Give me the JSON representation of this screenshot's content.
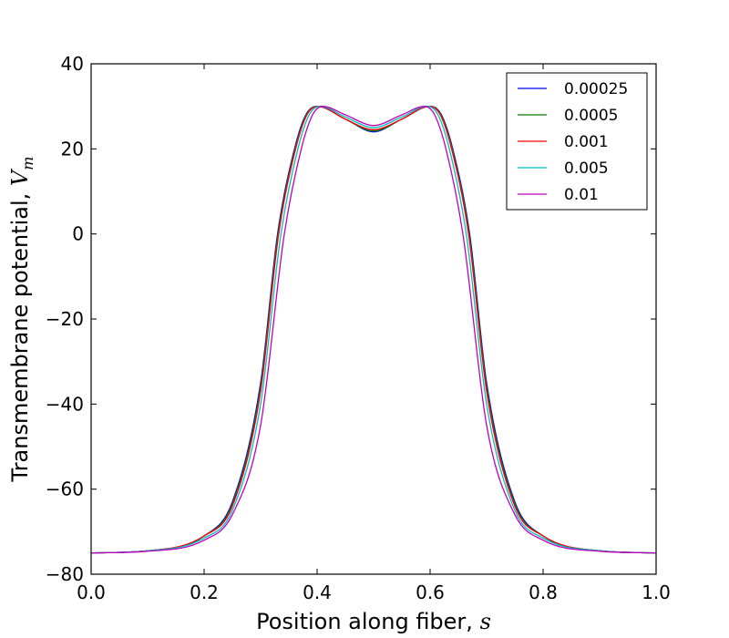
{
  "chart_data": {
    "type": "line",
    "xlabel": "Position along fiber, ",
    "xlabel_var": "s",
    "ylabel": "Transmembrane potential, ",
    "ylabel_var": "V",
    "ylabel_var_sub": "m",
    "xlim": [
      0.0,
      1.0
    ],
    "ylim": [
      -80,
      40
    ],
    "xticks": [
      "0.0",
      "0.2",
      "0.4",
      "0.6",
      "0.8",
      "1.0"
    ],
    "yticks": [
      "−80",
      "−60",
      "−40",
      "−20",
      "0",
      "20",
      "40"
    ],
    "grid": false,
    "legend_position": "top-right",
    "series": [
      {
        "name": "0.00025",
        "color": "#0000ff",
        "x": [
          0.0,
          0.1,
          0.2,
          0.25,
          0.3,
          0.33,
          0.36,
          0.38,
          0.4,
          0.45,
          0.5,
          0.55,
          0.6,
          0.62,
          0.64,
          0.67,
          0.7,
          0.75,
          0.8,
          0.9,
          1.0
        ],
        "y": [
          -75,
          -74.5,
          -71,
          -63,
          -35,
          0,
          20,
          28,
          30,
          27,
          24,
          27,
          30,
          28,
          20,
          0,
          -35,
          -63,
          -71,
          -74.5,
          -75
        ]
      },
      {
        "name": "0.0005",
        "color": "#008000",
        "x": [
          0.0,
          0.1,
          0.2,
          0.25,
          0.3,
          0.331,
          0.361,
          0.381,
          0.401,
          0.45,
          0.5,
          0.55,
          0.599,
          0.619,
          0.639,
          0.669,
          0.7,
          0.75,
          0.8,
          0.9,
          1.0
        ],
        "y": [
          -75,
          -74.5,
          -71,
          -63.5,
          -36,
          0,
          20,
          28,
          30,
          27,
          24.2,
          27,
          30,
          28,
          20,
          0,
          -36,
          -63.5,
          -71,
          -74.5,
          -75
        ]
      },
      {
        "name": "0.001",
        "color": "#ff0000",
        "x": [
          0.0,
          0.1,
          0.2,
          0.25,
          0.3,
          0.332,
          0.362,
          0.382,
          0.402,
          0.45,
          0.5,
          0.55,
          0.598,
          0.618,
          0.638,
          0.668,
          0.7,
          0.75,
          0.8,
          0.9,
          1.0
        ],
        "y": [
          -75,
          -74.5,
          -71,
          -64,
          -37,
          0,
          20,
          28,
          30,
          27,
          24.5,
          27,
          30,
          28,
          20,
          0,
          -37,
          -64,
          -71,
          -74.5,
          -75
        ]
      },
      {
        "name": "0.005",
        "color": "#00bfbf",
        "x": [
          0.0,
          0.1,
          0.2,
          0.25,
          0.3,
          0.336,
          0.366,
          0.386,
          0.405,
          0.45,
          0.5,
          0.55,
          0.595,
          0.614,
          0.634,
          0.664,
          0.7,
          0.75,
          0.8,
          0.9,
          1.0
        ],
        "y": [
          -75,
          -74.5,
          -71.5,
          -65,
          -40,
          0,
          20,
          28,
          30,
          27.5,
          25,
          27.5,
          30,
          28,
          20,
          0,
          -40,
          -65,
          -71.5,
          -74.5,
          -75
        ]
      },
      {
        "name": "0.01",
        "color": "#bf00bf",
        "x": [
          0.0,
          0.1,
          0.2,
          0.25,
          0.3,
          0.342,
          0.372,
          0.392,
          0.41,
          0.45,
          0.5,
          0.55,
          0.59,
          0.608,
          0.628,
          0.658,
          0.7,
          0.75,
          0.8,
          0.9,
          1.0
        ],
        "y": [
          -75,
          -74.6,
          -72,
          -66,
          -45,
          0,
          20,
          28,
          30,
          28,
          25.5,
          28,
          30,
          28,
          20,
          0,
          -45,
          -66,
          -72,
          -74.6,
          -75
        ]
      }
    ]
  }
}
